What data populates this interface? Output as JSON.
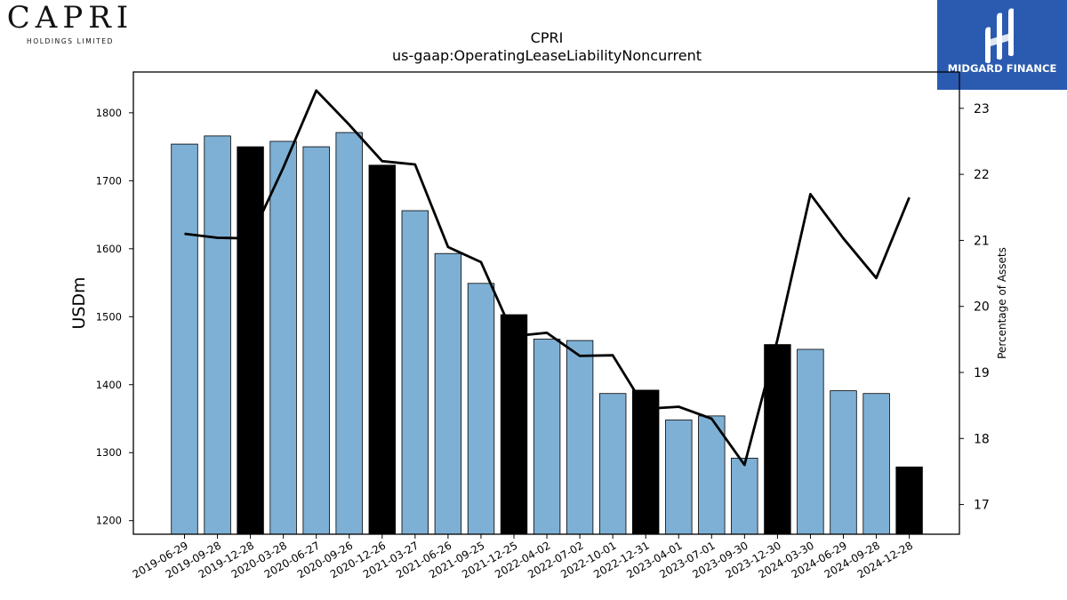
{
  "logos": {
    "left": {
      "name": "CAPRI",
      "sub": "HOLDINGS LIMITED"
    },
    "right": {
      "name": "MIDGARD FINANCE",
      "bg_color": "#2b5bb0"
    }
  },
  "chart_data": {
    "type": "bar",
    "title": "CPRI",
    "subtitle": "us-gaap:OperatingLeaseLiabilityNoncurrent",
    "ylabel": "USDm",
    "y2label": "Percentage of Assets",
    "ylim": [
      1180,
      1860
    ],
    "y2lim": [
      16.55,
      23.55
    ],
    "yticks": [
      1200,
      1300,
      1400,
      1500,
      1600,
      1700,
      1800
    ],
    "y2ticks": [
      17,
      18,
      19,
      20,
      21,
      22,
      23
    ],
    "grid": false,
    "categories": [
      "2019-06-29",
      "2019-09-28",
      "2019-12-28",
      "2020-03-28",
      "2020-06-27",
      "2020-09-26",
      "2020-12-26",
      "2021-03-27",
      "2021-06-26",
      "2021-09-25",
      "2021-12-25",
      "2022-04-02",
      "2022-07-02",
      "2022-10-01",
      "2022-12-31",
      "2023-04-01",
      "2023-07-01",
      "2023-09-30",
      "2023-12-30",
      "2024-03-30",
      "2024-06-29",
      "2024-09-28",
      "2024-12-28"
    ],
    "series": [
      {
        "kind": "bar",
        "axis": "left",
        "values": [
          1754,
          1766,
          1750,
          1758,
          1750,
          1771,
          1723,
          1656,
          1593,
          1549,
          1503,
          1467,
          1465,
          1387,
          1392,
          1348,
          1354,
          1292,
          1459,
          1452,
          1391,
          1387,
          1279
        ],
        "highlight": [
          false,
          false,
          true,
          false,
          false,
          false,
          true,
          false,
          false,
          false,
          true,
          false,
          false,
          false,
          true,
          false,
          false,
          false,
          true,
          false,
          false,
          false,
          true
        ],
        "color": "#7eb0d5",
        "highlight_color": "#000000"
      },
      {
        "kind": "line",
        "axis": "right",
        "values": [
          21.1,
          21.04,
          21.03,
          22.1,
          23.27,
          22.75,
          22.2,
          22.15,
          20.9,
          20.67,
          19.55,
          19.6,
          19.25,
          19.26,
          18.45,
          18.48,
          18.3,
          17.6,
          19.5,
          21.7,
          21.03,
          20.43,
          21.65
        ],
        "color": "#000000"
      }
    ]
  }
}
